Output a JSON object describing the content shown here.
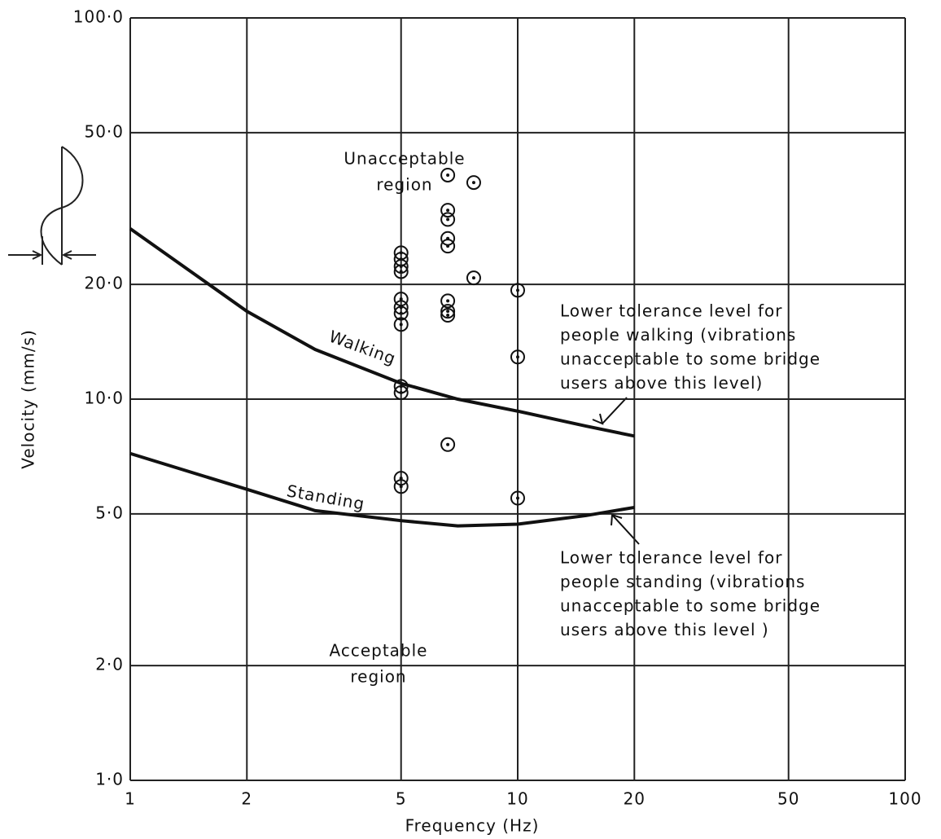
{
  "chart_data": {
    "type": "line",
    "x_label": "Frequency (Hz)",
    "y_label": "Velocity (mm/s)",
    "xscale": "log",
    "yscale": "log",
    "xlim": [
      1,
      100
    ],
    "ylim": [
      1,
      100
    ],
    "xticks": [
      1,
      2,
      5,
      10,
      20,
      50,
      100
    ],
    "yticks": [
      {
        "value": 1,
        "label": "1·0"
      },
      {
        "value": 2,
        "label": "2·0"
      },
      {
        "value": 5,
        "label": "5·0"
      },
      {
        "value": 10,
        "label": "10·0"
      },
      {
        "value": 20,
        "label": "20·0"
      },
      {
        "value": 50,
        "label": "50·0"
      },
      {
        "value": 100,
        "label": "100·0"
      }
    ],
    "grid": true,
    "series": [
      {
        "name": "Walking",
        "color": "#111111",
        "x": [
          1,
          2,
          3,
          5,
          7,
          10,
          15,
          20
        ],
        "values": [
          28,
          17,
          13.5,
          11,
          10,
          9.3,
          8.5,
          8
        ]
      },
      {
        "name": "Standing",
        "color": "#111111",
        "x": [
          1,
          2,
          3,
          5,
          7,
          10,
          15,
          20
        ],
        "values": [
          7.2,
          5.8,
          5.1,
          4.8,
          4.65,
          4.7,
          4.95,
          5.2
        ]
      }
    ],
    "points": {
      "color": "#111111",
      "x": [
        5,
        5,
        5,
        5,
        5,
        5,
        5,
        5,
        5,
        5,
        5,
        5,
        6.6,
        6.6,
        6.6,
        6.6,
        6.6,
        6.6,
        6.6,
        6.6,
        6.6,
        7.7,
        7.7,
        10,
        10,
        10
      ],
      "values": [
        24.2,
        23.3,
        22.3,
        21.6,
        18.3,
        17.4,
        16.8,
        15.7,
        10.8,
        10.4,
        6.2,
        5.9,
        38.7,
        31.3,
        29.6,
        26.4,
        25.2,
        18.1,
        17.0,
        16.6,
        7.6,
        37.0,
        20.8,
        19.3,
        12.9,
        5.5
      ]
    },
    "annotations": [
      {
        "lines": [
          "Unacceptable",
          "region"
        ]
      },
      {
        "lines": [
          "Lower tolerance level for",
          "people walking  (vibrations",
          "unacceptable to some bridge",
          "users above this level)"
        ]
      },
      {
        "lines": [
          "Lower tolerance level for",
          "people standing (vibrations",
          "unacceptable to some bridge",
          "users above this level )"
        ]
      },
      {
        "lines": [
          "Acceptable",
          "region"
        ]
      }
    ]
  }
}
